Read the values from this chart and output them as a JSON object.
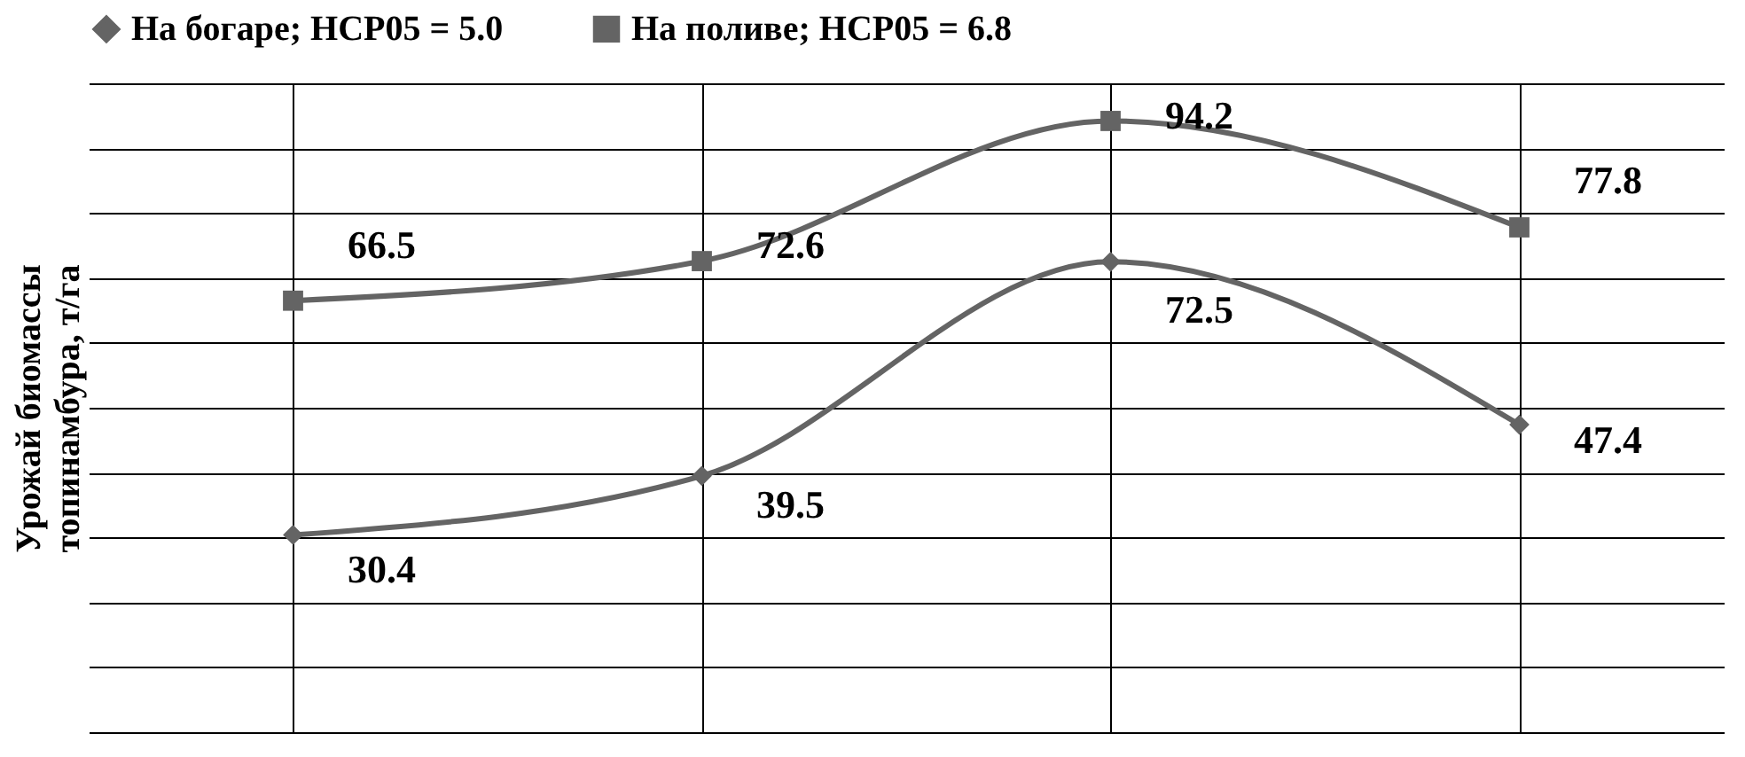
{
  "chart_data": {
    "type": "line",
    "ylabel": "Урожай биомассы\nтопинамбура, т/га",
    "categories": [
      null,
      null,
      null,
      null
    ],
    "series": [
      {
        "name": "На богаре;  НСР05 = 5.0",
        "color": "#646464",
        "marker": "diamond",
        "values": [
          30.4,
          39.5,
          72.5,
          47.4
        ]
      },
      {
        "name": "На поливе;  НСР05 = 6.8",
        "color": "#646464",
        "marker": "square",
        "values": [
          66.5,
          72.6,
          94.2,
          77.8
        ]
      }
    ],
    "ylim": [
      0,
      100
    ],
    "yticks": [
      {
        "value": 0,
        "label": null
      },
      {
        "value": 10,
        "label": null
      },
      {
        "value": 20,
        "label": null
      },
      {
        "value": 30,
        "label": null
      },
      {
        "value": 40,
        "label": null
      },
      {
        "value": 50,
        "label": null
      },
      {
        "value": 60,
        "label": null
      },
      {
        "value": 70,
        "label": null
      },
      {
        "value": 80,
        "label": null
      },
      {
        "value": 90,
        "label": null
      },
      {
        "value": 100,
        "label": null
      }
    ],
    "grid": true,
    "legend": "top",
    "tick_labels": false,
    "data_labels": true,
    "line_style": "solid"
  }
}
